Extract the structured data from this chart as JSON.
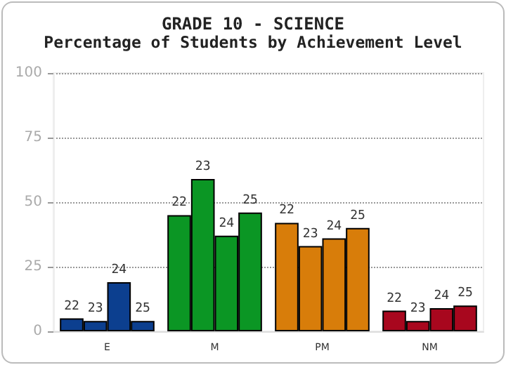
{
  "chart_data": {
    "type": "bar",
    "title": "GRADE 10 - SCIENCE",
    "subtitle": "Percentage of Students by Achievement Level",
    "categories": [
      "E",
      "M",
      "PM",
      "NM"
    ],
    "series": [
      {
        "name": "22",
        "colors": [
          "#0c3f8f",
          "#0b9624",
          "#d87d0a",
          "#a8071e"
        ],
        "values": [
          5,
          45,
          42,
          8
        ]
      },
      {
        "name": "23",
        "colors": [
          "#0c3f8f",
          "#0b9624",
          "#d87d0a",
          "#a8071e"
        ],
        "values": [
          4,
          59,
          33,
          4
        ]
      },
      {
        "name": "24",
        "colors": [
          "#0c3f8f",
          "#0b9624",
          "#d87d0a",
          "#a8071e"
        ],
        "values": [
          19,
          37,
          36,
          9
        ]
      },
      {
        "name": "25",
        "colors": [
          "#0c3f8f",
          "#0b9624",
          "#d87d0a",
          "#a8071e"
        ],
        "values": [
          4,
          46,
          40,
          10
        ]
      }
    ],
    "ylim": [
      0,
      100
    ],
    "yticks": [
      0,
      25,
      50,
      75,
      100
    ],
    "grid": "y",
    "legend": false
  }
}
